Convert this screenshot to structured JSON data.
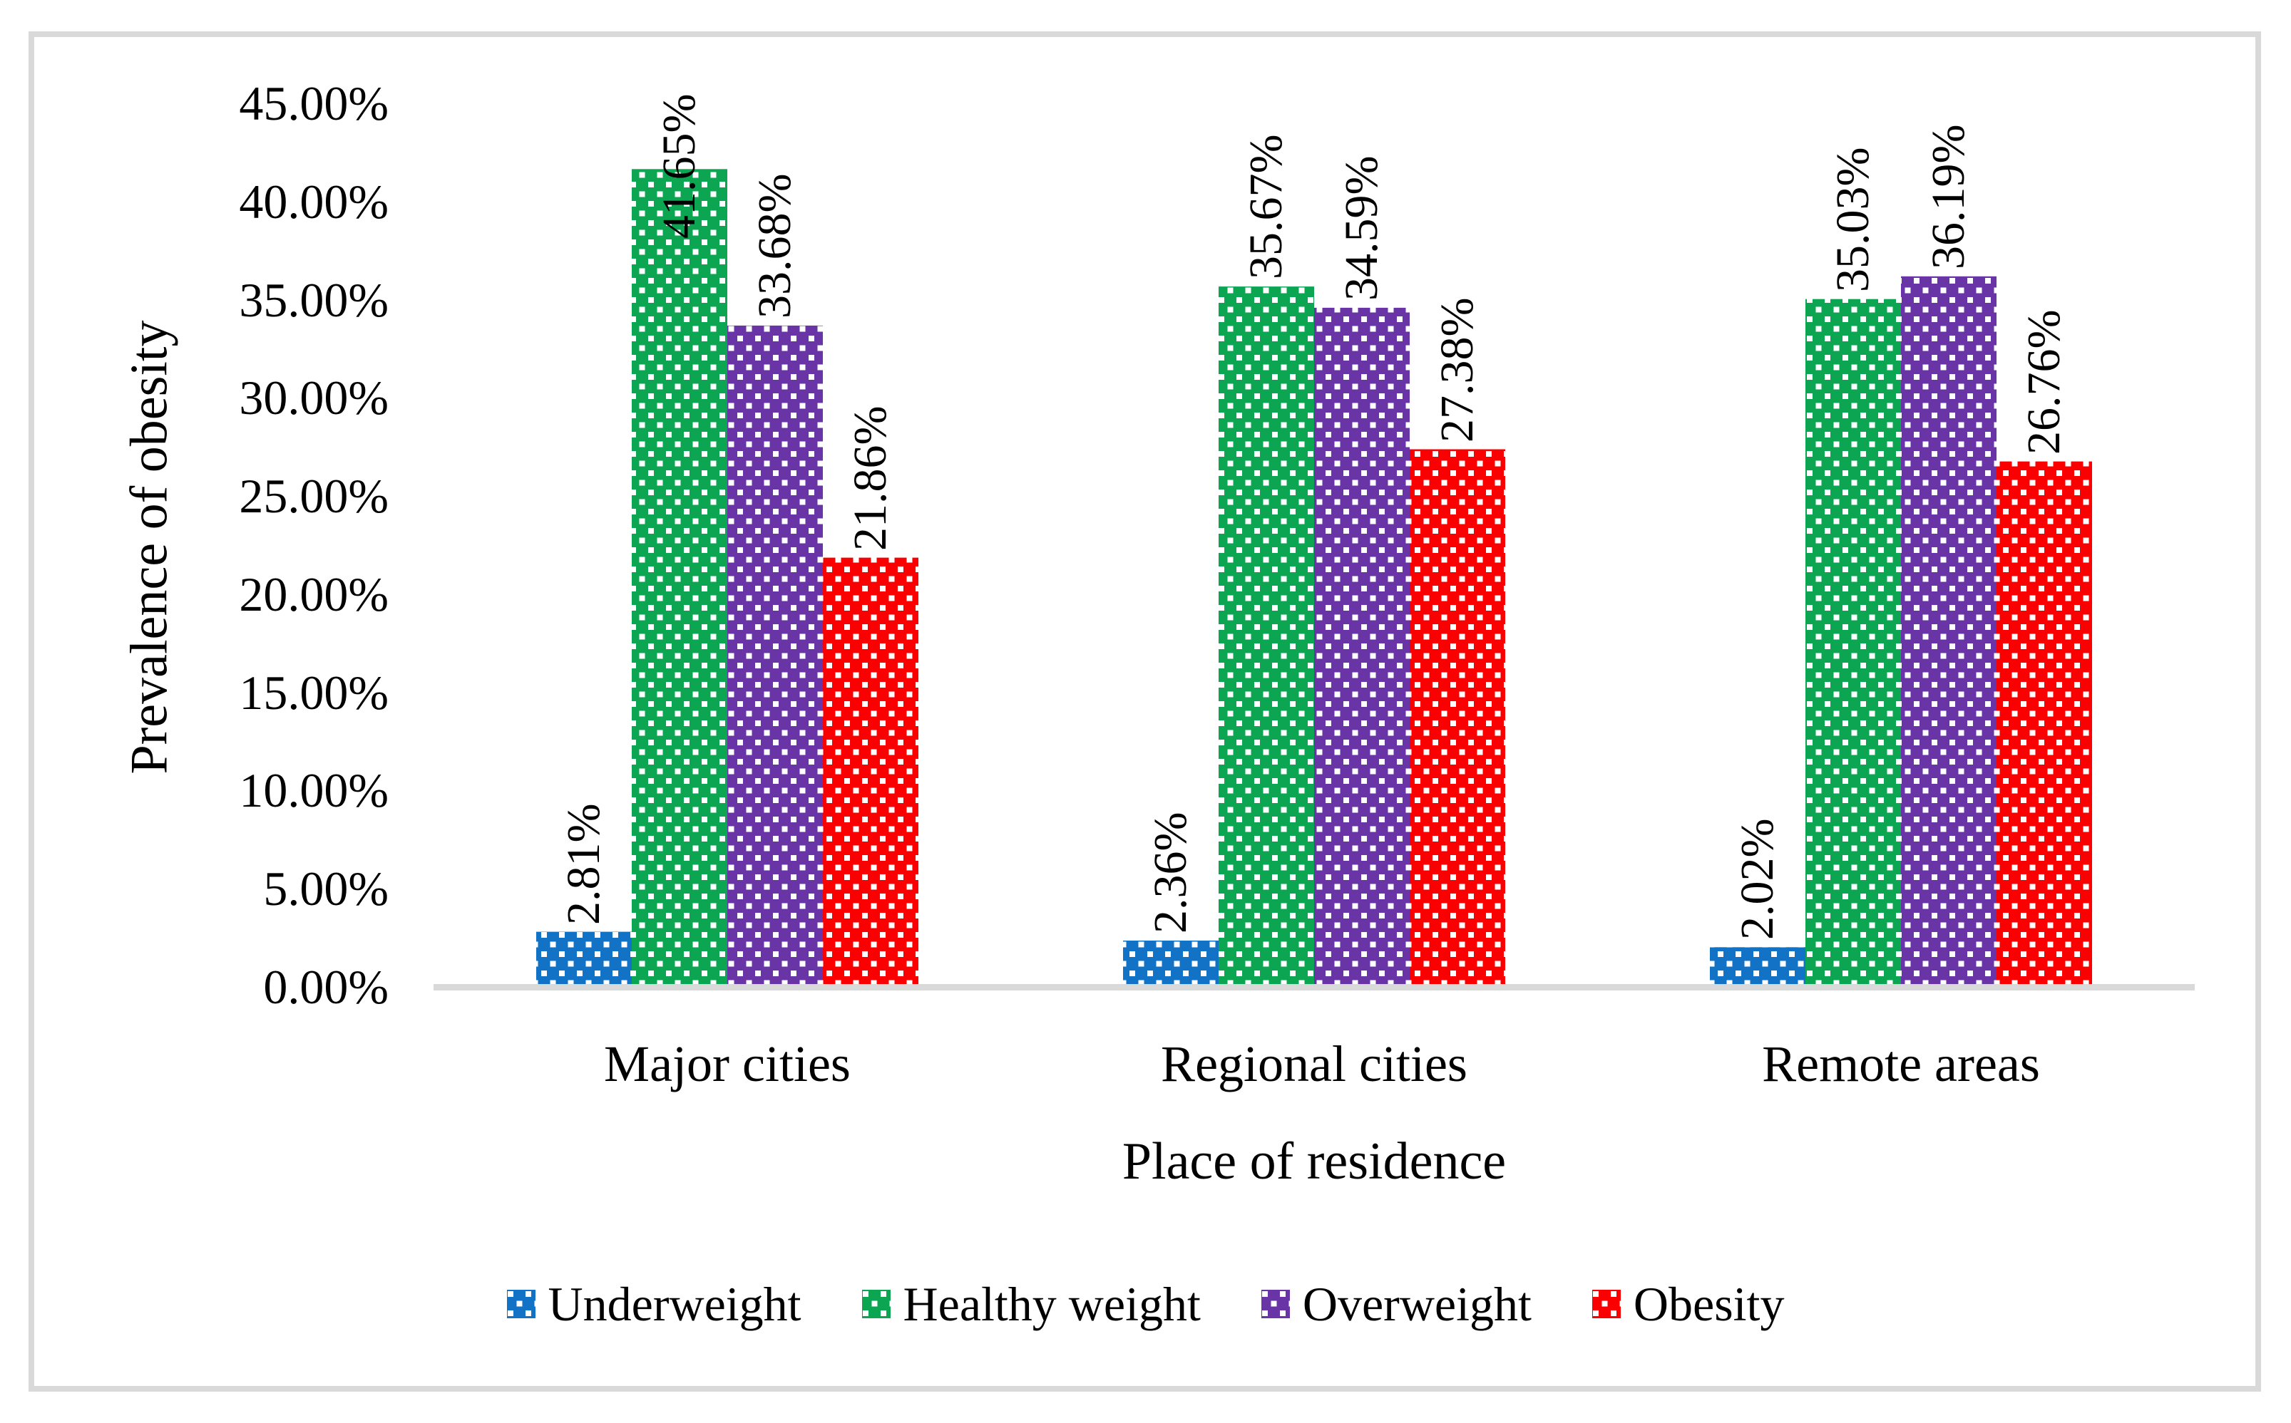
{
  "chart_data": {
    "type": "bar",
    "title": "",
    "xlabel": "Place of residence",
    "ylabel": "Prevalence of obesity",
    "categories": [
      "Major cities",
      "Regional cities",
      "Remote areas"
    ],
    "series": [
      {
        "name": "Underweight",
        "color": "#1272c6",
        "values": [
          2.81,
          2.36,
          2.02
        ],
        "labels": [
          "2.81%",
          "2.36%",
          "2.02%"
        ]
      },
      {
        "name": "Healthy weight",
        "color": "#0ca652",
        "values": [
          41.65,
          35.67,
          35.03
        ],
        "labels": [
          "41.65%",
          "35.67%",
          "35.03%"
        ]
      },
      {
        "name": "Overweight",
        "color": "#6834a6",
        "values": [
          33.68,
          34.59,
          36.19
        ],
        "labels": [
          "33.68%",
          "34.59%",
          "36.19%"
        ]
      },
      {
        "name": "Obesity",
        "color": "#fa0000",
        "values": [
          21.86,
          27.38,
          26.76
        ],
        "labels": [
          "21.86%",
          "27.38%",
          "26.76%"
        ]
      }
    ],
    "y_ticks": [
      "0.00%",
      "5.00%",
      "10.00%",
      "15.00%",
      "20.00%",
      "25.00%",
      "30.00%",
      "35.00%",
      "40.00%",
      "45.00%"
    ],
    "ylim": [
      0,
      45
    ],
    "y_tick_step": 5,
    "grid": false,
    "legend_position": "bottom",
    "bar_fill_pattern": "white-square-dots",
    "data_label_rotation_degrees": 90
  },
  "colors": {
    "background": "#ffffff",
    "frame_border": "#d9d9d9",
    "axis_line": "#d9d9d9",
    "text": "#000000",
    "pattern_dot": "#ffffff"
  }
}
